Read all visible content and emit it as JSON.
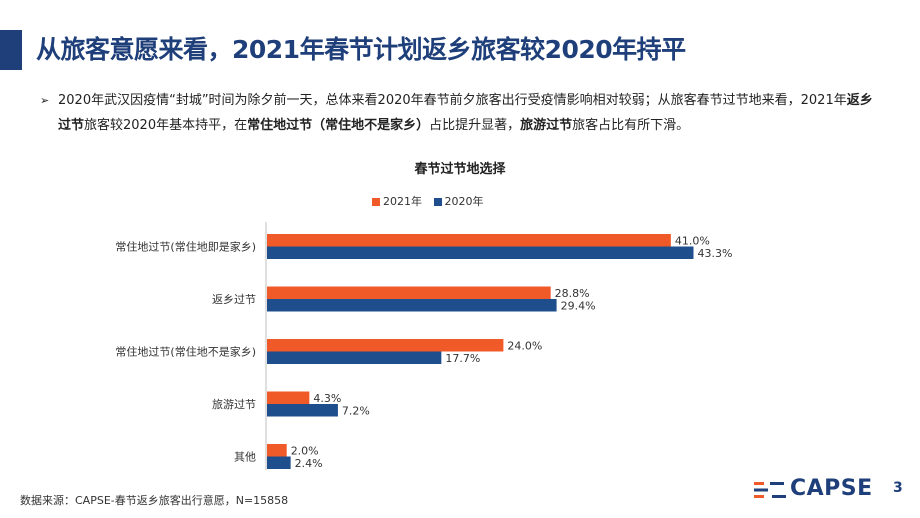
{
  "header": {
    "title": "从旅客意愿来看，2021年春节计划返乡旅客较2020年持平"
  },
  "bullet": {
    "marker": "➢",
    "segments": [
      {
        "text": "2020年武汉因疫情“封城”时间为除夕前一天，总体来看2020年春节前夕旅客出行受疫情影响相对较弱；从旅客春节过节地来看，2021年",
        "bold": false
      },
      {
        "text": "返乡过节",
        "bold": true
      },
      {
        "text": "旅客较2020年基本持平，在",
        "bold": false
      },
      {
        "text": "常住地过节（常住地不是家乡）",
        "bold": true
      },
      {
        "text": "占比提升显著，",
        "bold": false
      },
      {
        "text": "旅游过节",
        "bold": true
      },
      {
        "text": "旅客占比有所下滑。",
        "bold": false
      }
    ]
  },
  "chart_data": {
    "type": "bar",
    "orientation": "horizontal",
    "title": "春节过节地选择",
    "categories": [
      "常住地过节(常住地即是家乡)",
      "返乡过节",
      "常住地过节(常住地不是家乡)",
      "旅游过节",
      "其他"
    ],
    "series": [
      {
        "name": "2021年",
        "color": "#f05a28",
        "values": [
          41.0,
          28.8,
          24.0,
          4.3,
          2.0
        ]
      },
      {
        "name": "2020年",
        "color": "#1f4e8c",
        "values": [
          43.3,
          29.4,
          17.7,
          7.2,
          2.4
        ]
      }
    ],
    "xlim": [
      0,
      50
    ],
    "value_suffix": "%",
    "legend_position": "top",
    "grid": false
  },
  "footer": {
    "source": "数据来源：CAPSE-春节返乡旅客出行意愿，N=15858",
    "logo_text": "CAPSE",
    "page_number": "3"
  },
  "colors": {
    "brand": "#1f3f7a",
    "accent_orange": "#f05a28"
  }
}
